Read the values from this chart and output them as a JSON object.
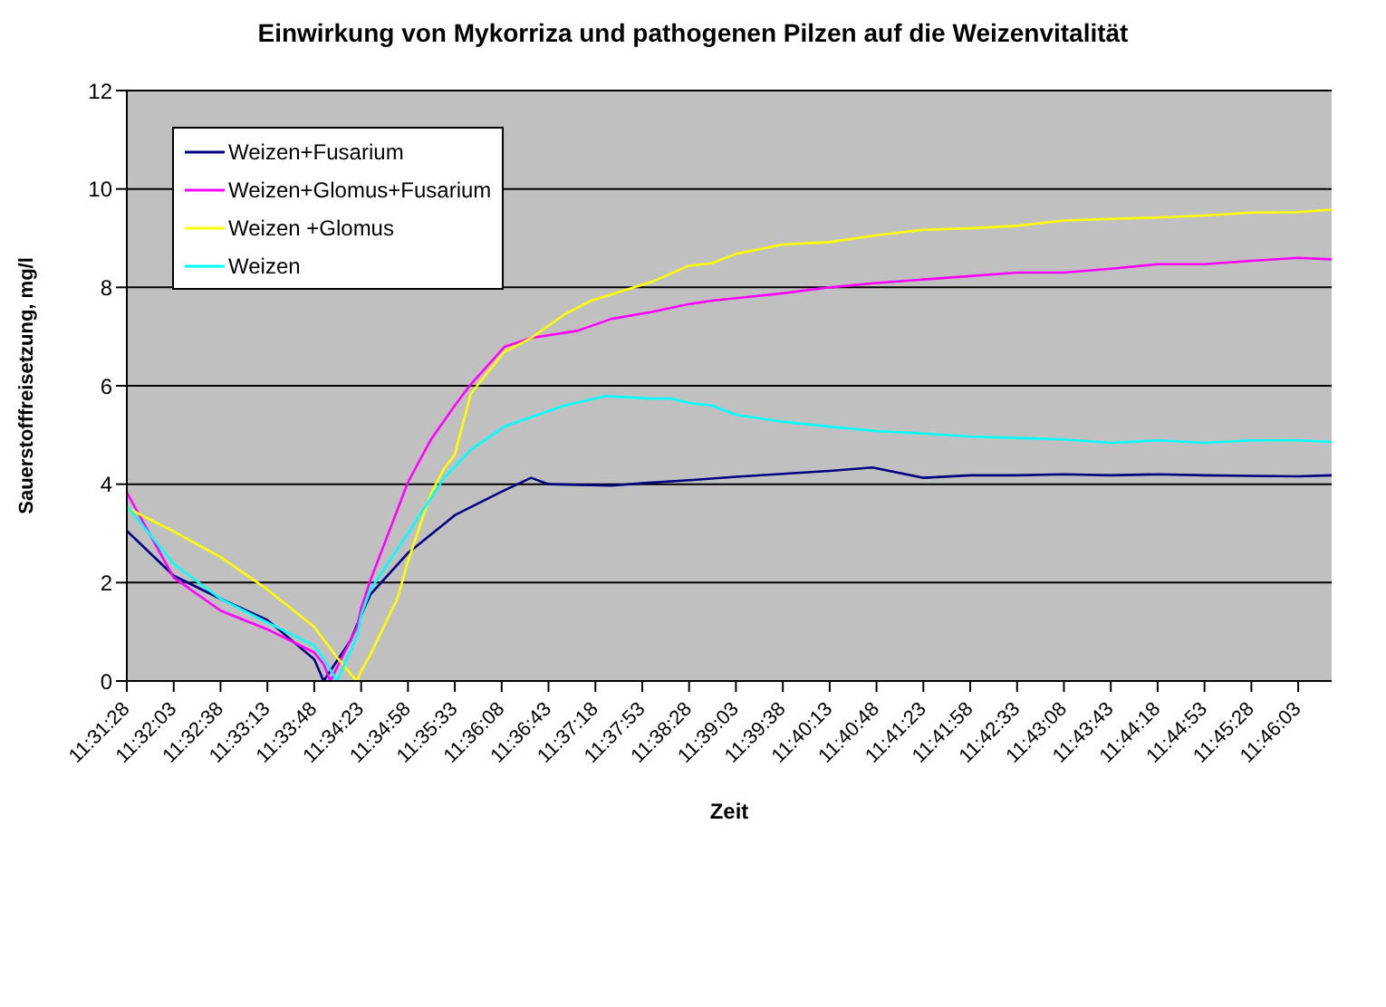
{
  "chart_data": {
    "type": "line",
    "title": "Einwirkung von Mykorriza und pathogenen Pilzen auf die Weizenvitalität",
    "xlabel": "Zeit",
    "ylabel": "Sauerstofffreisetzung, mg/l",
    "xlim": [
      11.52444,
      11.77444
    ],
    "xticks": [
      {
        "value": 11.52444,
        "label": "11:31:28"
      },
      {
        "value": 11.53417,
        "label": "11:32:03"
      },
      {
        "value": 11.54389,
        "label": "11:32:38"
      },
      {
        "value": 11.55361,
        "label": "11:33:13"
      },
      {
        "value": 11.56333,
        "label": "11:33:48"
      },
      {
        "value": 11.57306,
        "label": "11:34:23"
      },
      {
        "value": 11.58278,
        "label": "11:34:58"
      },
      {
        "value": 11.5925,
        "label": "11:35:33"
      },
      {
        "value": 11.60222,
        "label": "11:36:08"
      },
      {
        "value": 11.61194,
        "label": "11:36:43"
      },
      {
        "value": 11.62167,
        "label": "11:37:18"
      },
      {
        "value": 11.63139,
        "label": "11:37:53"
      },
      {
        "value": 11.64111,
        "label": "11:38:28"
      },
      {
        "value": 11.65083,
        "label": "11:39:03"
      },
      {
        "value": 11.66056,
        "label": "11:39:38"
      },
      {
        "value": 11.67028,
        "label": "11:40:13"
      },
      {
        "value": 11.68,
        "label": "11:40:48"
      },
      {
        "value": 11.68972,
        "label": "11:41:23"
      },
      {
        "value": 11.69944,
        "label": "11:41:58"
      },
      {
        "value": 11.70917,
        "label": "11:42:33"
      },
      {
        "value": 11.71889,
        "label": "11:43:08"
      },
      {
        "value": 11.72861,
        "label": "11:43:43"
      },
      {
        "value": 11.73833,
        "label": "11:44:18"
      },
      {
        "value": 11.74806,
        "label": "11:44:53"
      },
      {
        "value": 11.75778,
        "label": "11:45:28"
      },
      {
        "value": 11.7675,
        "label": "11:46:03"
      }
    ],
    "ylim": [
      0,
      12
    ],
    "yticks": [
      0,
      2,
      4,
      6,
      8,
      10,
      12
    ],
    "grid": "y",
    "legend": "top left",
    "marker": "none",
    "line_style": "solid",
    "series": [
      {
        "name": "Weizen+Fusarium",
        "color": "#000080",
        "x": [
          11.52444,
          11.53417,
          11.54389,
          11.55361,
          11.56333,
          11.56528,
          11.57083,
          11.57306,
          11.575,
          11.58278,
          11.5925,
          11.60222,
          11.60833,
          11.61194,
          11.625,
          11.63139,
          11.64111,
          11.65083,
          11.66056,
          11.67028,
          11.67917,
          11.68972,
          11.69944,
          11.70917,
          11.71889,
          11.72861,
          11.73833,
          11.74806,
          11.75778,
          11.7675,
          11.77444
        ],
        "values": [
          3.05,
          2.14,
          1.67,
          1.24,
          0.44,
          0,
          0.82,
          1.34,
          1.76,
          2.6,
          3.37,
          3.85,
          4.13,
          4.0,
          3.97,
          4.02,
          4.08,
          4.15,
          4.21,
          4.27,
          4.34,
          4.13,
          4.18,
          4.18,
          4.2,
          4.18,
          4.2,
          4.18,
          4.17,
          4.16,
          4.18
        ]
      },
      {
        "name": "Weizen+Glomus+Fusarium",
        "color": "#ff00ff",
        "x": [
          11.52444,
          11.53417,
          11.54389,
          11.55361,
          11.56333,
          11.56528,
          11.56667,
          11.57222,
          11.57306,
          11.575,
          11.58278,
          11.5875,
          11.5925,
          11.59583,
          11.60278,
          11.60833,
          11.61806,
          11.625,
          11.63333,
          11.64111,
          11.64583,
          11.65083,
          11.66056,
          11.67028,
          11.68,
          11.68972,
          11.69944,
          11.70917,
          11.71889,
          11.72861,
          11.73833,
          11.74806,
          11.75778,
          11.7675,
          11.77444
        ],
        "values": [
          3.83,
          2.1,
          1.43,
          1.05,
          0.58,
          0.34,
          0,
          1.1,
          1.48,
          2.05,
          4.04,
          4.9,
          5.6,
          6.03,
          6.79,
          6.97,
          7.12,
          7.36,
          7.5,
          7.66,
          7.73,
          7.78,
          7.88,
          8.0,
          8.09,
          8.16,
          8.23,
          8.3,
          8.3,
          8.38,
          8.47,
          8.47,
          8.54,
          8.6,
          8.57
        ]
      },
      {
        "name": "Weizen +Glomus",
        "color": "#ffff00",
        "x": [
          11.52444,
          11.53417,
          11.54389,
          11.55361,
          11.56333,
          11.56806,
          11.57083,
          11.57222,
          11.57306,
          11.575,
          11.58056,
          11.58278,
          11.5875,
          11.59028,
          11.5925,
          11.59583,
          11.60278,
          11.60833,
          11.61528,
          11.62083,
          11.63333,
          11.64111,
          11.64583,
          11.65083,
          11.66056,
          11.67028,
          11.68,
          11.68972,
          11.69944,
          11.70917,
          11.71889,
          11.72861,
          11.73833,
          11.74806,
          11.75778,
          11.7675,
          11.77444
        ],
        "values": [
          3.52,
          3.04,
          2.52,
          1.86,
          1.1,
          0.48,
          0.15,
          0,
          0.2,
          0.54,
          1.67,
          2.43,
          3.8,
          4.32,
          4.6,
          5.84,
          6.69,
          6.97,
          7.45,
          7.73,
          8.11,
          8.44,
          8.49,
          8.68,
          8.87,
          8.92,
          9.06,
          9.17,
          9.2,
          9.25,
          9.36,
          9.39,
          9.42,
          9.46,
          9.52,
          9.53,
          9.58
        ]
      },
      {
        "name": "Weizen",
        "color": "#00ffff",
        "x": [
          11.52444,
          11.53417,
          11.54389,
          11.55361,
          11.56333,
          11.56528,
          11.56806,
          11.57222,
          11.57306,
          11.575,
          11.58278,
          11.59028,
          11.59583,
          11.60278,
          11.60833,
          11.61528,
          11.62361,
          11.63333,
          11.6375,
          11.64111,
          11.64583,
          11.65083,
          11.66056,
          11.67028,
          11.68,
          11.68972,
          11.69944,
          11.70917,
          11.71889,
          11.72861,
          11.73833,
          11.74806,
          11.75778,
          11.7675,
          11.77444
        ],
        "values": [
          3.56,
          2.38,
          1.67,
          1.19,
          0.72,
          0.45,
          0,
          0.91,
          1.34,
          1.86,
          3.0,
          4.13,
          4.7,
          5.17,
          5.36,
          5.6,
          5.79,
          5.74,
          5.74,
          5.65,
          5.6,
          5.41,
          5.27,
          5.17,
          5.08,
          5.03,
          4.97,
          4.94,
          4.91,
          4.84,
          4.89,
          4.84,
          4.89,
          4.89,
          4.86
        ]
      }
    ]
  }
}
